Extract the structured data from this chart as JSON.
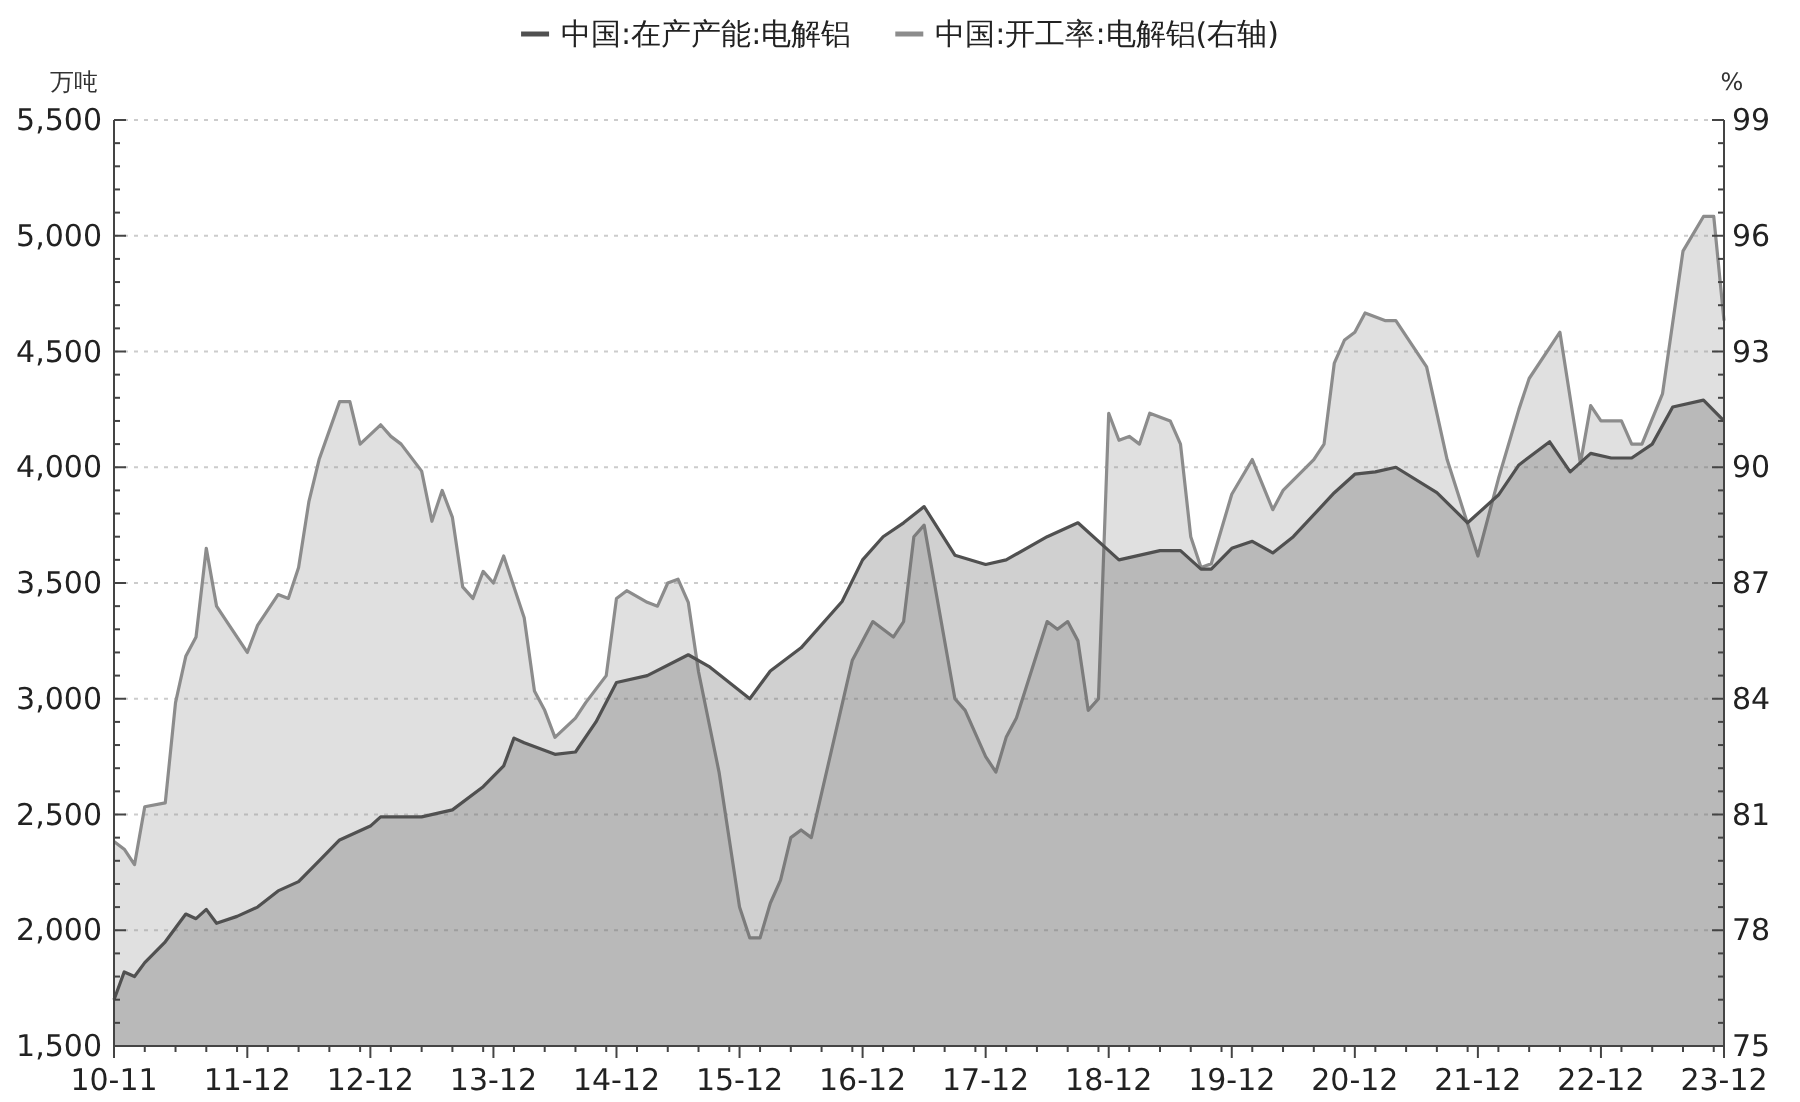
{
  "chart_data": {
    "type": "area",
    "ylabel": "万吨",
    "y2label": "%",
    "legend": "top",
    "grid": "y",
    "xlim": [
      "2010-11",
      "2023-12"
    ],
    "xticks": [
      {
        "value": "2010-11",
        "label": "10-11"
      },
      {
        "value": "2011-12",
        "label": "11-12"
      },
      {
        "value": "2012-12",
        "label": "12-12"
      },
      {
        "value": "2013-12",
        "label": "13-12"
      },
      {
        "value": "2014-12",
        "label": "14-12"
      },
      {
        "value": "2015-12",
        "label": "15-12"
      },
      {
        "value": "2016-12",
        "label": "16-12"
      },
      {
        "value": "2017-12",
        "label": "17-12"
      },
      {
        "value": "2018-12",
        "label": "18-12"
      },
      {
        "value": "2019-12",
        "label": "19-12"
      },
      {
        "value": "2020-12",
        "label": "20-12"
      },
      {
        "value": "2021-12",
        "label": "21-12"
      },
      {
        "value": "2022-12",
        "label": "22-12"
      },
      {
        "value": "2023-12",
        "label": "23-12"
      }
    ],
    "ylim": [
      1500,
      5500
    ],
    "yticks": [
      {
        "value": 1500,
        "label": "1,500"
      },
      {
        "value": 2000,
        "label": "2,000"
      },
      {
        "value": 2500,
        "label": "2,500"
      },
      {
        "value": 3000,
        "label": "3,000"
      },
      {
        "value": 3500,
        "label": "3,500"
      },
      {
        "value": 4000,
        "label": "4,000"
      },
      {
        "value": 4500,
        "label": "4,500"
      },
      {
        "value": 5000,
        "label": "5,000"
      },
      {
        "value": 5500,
        "label": "5,500"
      }
    ],
    "y2lim": [
      75,
      99
    ],
    "y2ticks": [
      75,
      78,
      81,
      84,
      87,
      90,
      93,
      96,
      99
    ],
    "series": [
      {
        "name": "中国:开工率:电解铝(右轴)",
        "color": "#8c8c8c",
        "axis": "y2",
        "x": [
          "2010-11",
          "2010-12",
          "2011-01",
          "2011-02",
          "2011-04",
          "2011-05",
          "2011-06",
          "2011-07",
          "2011-08",
          "2011-09",
          "2011-10",
          "2011-12",
          "2012-01",
          "2012-03",
          "2012-04",
          "2012-05",
          "2012-06",
          "2012-07",
          "2012-09",
          "2012-10",
          "2012-11",
          "2013-01",
          "2013-02",
          "2013-03",
          "2013-05",
          "2013-06",
          "2013-07",
          "2013-08",
          "2013-09",
          "2013-10",
          "2013-11",
          "2013-12",
          "2014-01",
          "2014-03",
          "2014-04",
          "2014-05",
          "2014-06",
          "2014-08",
          "2014-09",
          "2014-11",
          "2014-12",
          "2015-01",
          "2015-03",
          "2015-04",
          "2015-05",
          "2015-06",
          "2015-07",
          "2015-08",
          "2015-10",
          "2015-12",
          "2016-01",
          "2016-02",
          "2016-03",
          "2016-04",
          "2016-05",
          "2016-06",
          "2016-07",
          "2016-11",
          "2017-01",
          "2017-03",
          "2017-04",
          "2017-05",
          "2017-06",
          "2017-09",
          "2017-10",
          "2017-12",
          "2018-01",
          "2018-02",
          "2018-03",
          "2018-06",
          "2018-07",
          "2018-08",
          "2018-09",
          "2018-10",
          "2018-11",
          "2018-12",
          "2019-01",
          "2019-02",
          "2019-03",
          "2019-04",
          "2019-06",
          "2019-07",
          "2019-08",
          "2019-09",
          "2019-10",
          "2019-12",
          "2020-02",
          "2020-04",
          "2020-05",
          "2020-08",
          "2020-09",
          "2020-10",
          "2020-11",
          "2020-12",
          "2021-01",
          "2021-03",
          "2021-04",
          "2021-07",
          "2021-09",
          "2021-12",
          "2022-02",
          "2022-04",
          "2022-05",
          "2022-08",
          "2022-10",
          "2022-11",
          "2022-12",
          "2023-02",
          "2023-03",
          "2023-04",
          "2023-06",
          "2023-08",
          "2023-10",
          "2023-11",
          "2023-12"
        ],
        "values": [
          80.3,
          80.1,
          79.7,
          81.2,
          81.3,
          83.9,
          85.1,
          85.6,
          87.9,
          86.4,
          86.0,
          85.2,
          85.9,
          86.7,
          86.6,
          87.4,
          89.1,
          90.2,
          91.7,
          91.7,
          90.6,
          91.1,
          90.8,
          90.6,
          89.9,
          88.6,
          89.4,
          88.7,
          86.9,
          86.6,
          87.3,
          87.0,
          87.7,
          86.1,
          84.2,
          83.7,
          83.0,
          83.5,
          83.9,
          84.6,
          86.6,
          86.8,
          86.5,
          86.4,
          87.0,
          87.1,
          86.5,
          84.7,
          82.1,
          78.6,
          77.8,
          77.8,
          78.7,
          79.3,
          80.4,
          80.6,
          80.4,
          85.0,
          86.0,
          85.6,
          86.0,
          88.2,
          88.5,
          84.0,
          83.7,
          82.5,
          82.1,
          83.0,
          83.5,
          86.0,
          85.8,
          86.0,
          85.5,
          83.7,
          84.0,
          91.4,
          90.7,
          90.8,
          90.6,
          91.4,
          91.2,
          90.6,
          88.2,
          87.4,
          87.5,
          89.3,
          90.2,
          88.9,
          89.4,
          90.2,
          90.6,
          92.7,
          93.3,
          93.5,
          94.0,
          93.8,
          93.8,
          92.6,
          90.2,
          87.7,
          89.7,
          91.5,
          92.3,
          93.5,
          90.1,
          91.6,
          91.2,
          91.2,
          90.6,
          90.6,
          91.9,
          95.6,
          96.5,
          96.5,
          93.8
        ]
      },
      {
        "name": "中国:在产产能:电解铝",
        "color": "#505050",
        "x": [
          "2010-11",
          "2010-12",
          "2011-01",
          "2011-02",
          "2011-04",
          "2011-06",
          "2011-07",
          "2011-08",
          "2011-09",
          "2011-11",
          "2012-01",
          "2012-03",
          "2012-05",
          "2012-07",
          "2012-09",
          "2012-12",
          "2013-01",
          "2013-05",
          "2013-08",
          "2013-11",
          "2014-01",
          "2014-02",
          "2014-03",
          "2014-06",
          "2014-08",
          "2014-10",
          "2014-12",
          "2015-03",
          "2015-07",
          "2015-09",
          "2016-01",
          "2016-03",
          "2016-06",
          "2016-10",
          "2016-12",
          "2017-02",
          "2017-04",
          "2017-06",
          "2017-09",
          "2017-12",
          "2018-02",
          "2018-06",
          "2018-09",
          "2019-01",
          "2019-05",
          "2019-07",
          "2019-09",
          "2019-10",
          "2019-12",
          "2020-02",
          "2020-04",
          "2020-06",
          "2020-10",
          "2020-12",
          "2021-02",
          "2021-04",
          "2021-08",
          "2021-11",
          "2022-02",
          "2022-04",
          "2022-07",
          "2022-09",
          "2022-11",
          "2023-01",
          "2023-03",
          "2023-05",
          "2023-07",
          "2023-10",
          "2023-12"
        ],
        "values": [
          1700,
          1820,
          1800,
          1860,
          1950,
          2070,
          2050,
          2090,
          2030,
          2060,
          2100,
          2170,
          2210,
          2300,
          2390,
          2450,
          2490,
          2490,
          2520,
          2620,
          2710,
          2830,
          2810,
          2760,
          2770,
          2900,
          3070,
          3100,
          3190,
          3140,
          3000,
          3120,
          3220,
          3420,
          3600,
          3700,
          3760,
          3830,
          3620,
          3580,
          3600,
          3700,
          3760,
          3600,
          3640,
          3640,
          3560,
          3560,
          3650,
          3680,
          3630,
          3700,
          3890,
          3970,
          3980,
          4000,
          3890,
          3760,
          3880,
          4010,
          4110,
          3980,
          4060,
          4040,
          4040,
          4100,
          4260,
          4290,
          4200
        ]
      }
    ]
  }
}
